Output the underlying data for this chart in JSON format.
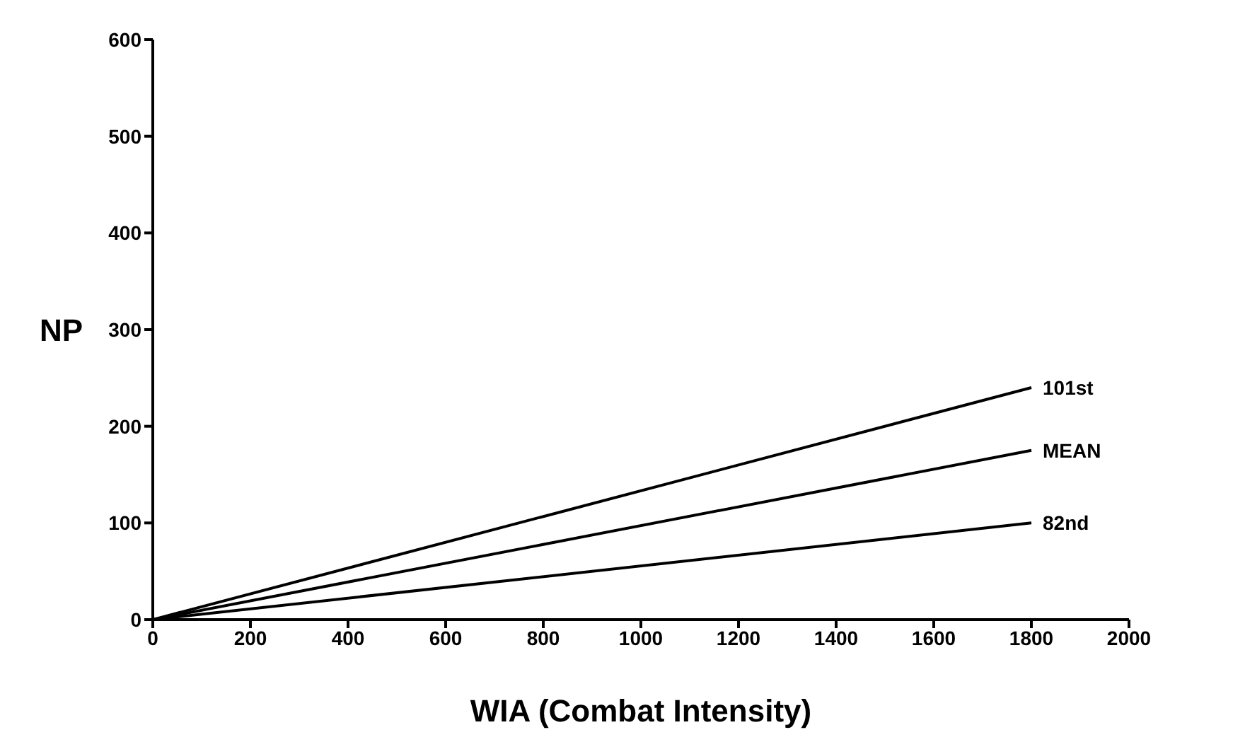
{
  "chart_data": {
    "type": "line",
    "xlabel": "WIA (Combat Intensity)",
    "ylabel": "NP",
    "x": [
      0,
      1800
    ],
    "series": [
      {
        "name": "101st",
        "color": "#000000",
        "values": [
          0,
          240
        ]
      },
      {
        "name": "MEAN",
        "color": "#000000",
        "values": [
          0,
          175
        ]
      },
      {
        "name": "82nd",
        "color": "#000000",
        "values": [
          0,
          100
        ]
      }
    ],
    "xlim": [
      0,
      2000
    ],
    "xticks": [
      0,
      200,
      400,
      600,
      800,
      1000,
      1200,
      1400,
      1600,
      1800,
      2000
    ],
    "ylim": [
      0,
      600
    ],
    "yticks": [
      0,
      100,
      200,
      300,
      400,
      500,
      600
    ],
    "grid": false,
    "legend": false,
    "marker": "none",
    "line_style": "solid"
  }
}
